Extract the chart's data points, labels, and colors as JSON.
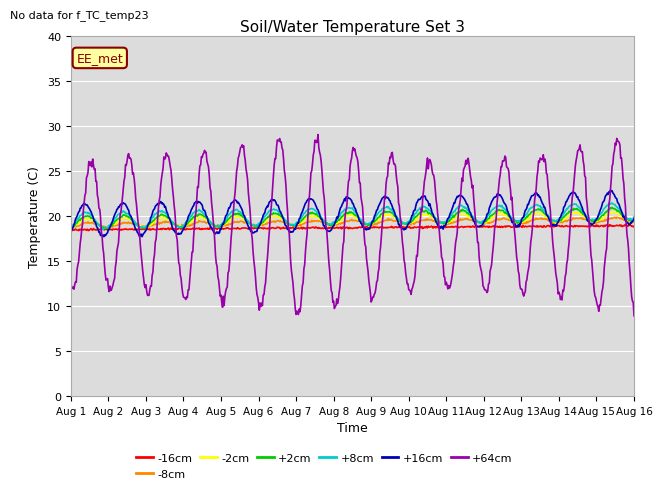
{
  "title": "Soil/Water Temperature Set 3",
  "xlabel": "Time",
  "ylabel": "Temperature (C)",
  "no_data_text": "No data for f_TC_temp23",
  "legend_label_text": "EE_met",
  "ylim": [
    0,
    40
  ],
  "xlim": [
    0,
    15
  ],
  "x_tick_labels": [
    "Aug 1",
    "Aug 2",
    "Aug 3",
    "Aug 4",
    "Aug 5",
    "Aug 6",
    "Aug 7",
    "Aug 8",
    "Aug 9",
    "Aug 10",
    "Aug 11",
    "Aug 12",
    "Aug 13",
    "Aug 14",
    "Aug 15",
    "Aug 16"
  ],
  "bg_color": "#dcdcdc",
  "series": [
    {
      "label": "-16cm",
      "color": "#ff0000"
    },
    {
      "label": "-8cm",
      "color": "#ff8800"
    },
    {
      "label": "-2cm",
      "color": "#ffff00"
    },
    {
      "label": "+2cm",
      "color": "#00cc00"
    },
    {
      "label": "+8cm",
      "color": "#00cccc"
    },
    {
      "label": "+16cm",
      "color": "#0000bb"
    }
  ],
  "purple_label": "+64cm",
  "purple_color": "#9900aa"
}
